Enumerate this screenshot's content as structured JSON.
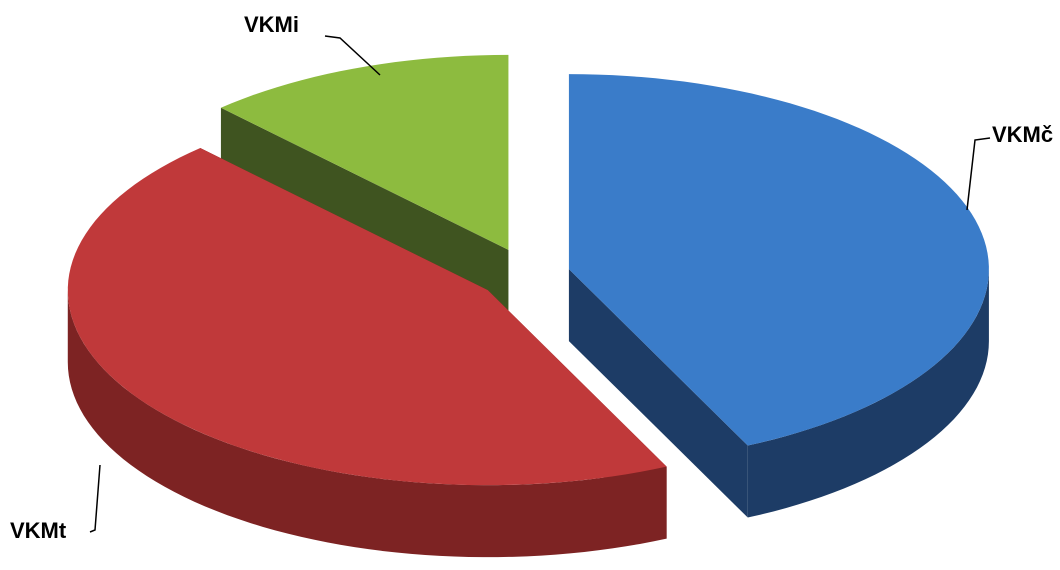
{
  "chart_data": {
    "type": "pie",
    "categories": [
      "VKMč",
      "VKMt",
      "VKMi"
    ],
    "values": [
      43,
      45,
      12
    ],
    "colors": [
      "#3a7cc9",
      "#c0393a",
      "#8dbb3f"
    ],
    "side_colors": [
      "#1d3c66",
      "#7d2323",
      "#3f5420"
    ]
  }
}
